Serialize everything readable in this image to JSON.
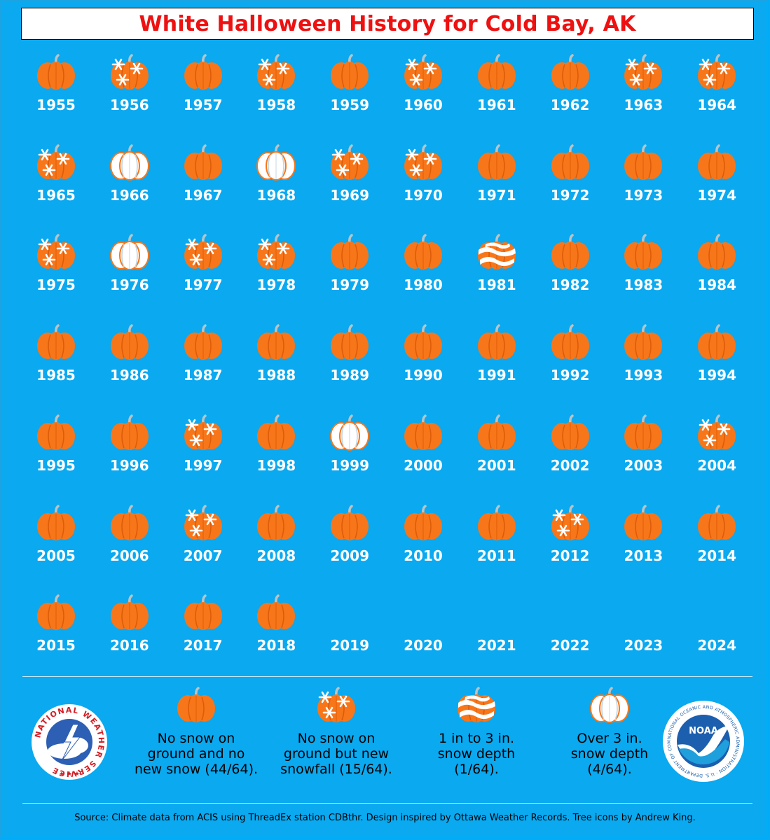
{
  "title": "White Halloween History for Cold Bay, AK",
  "colors": {
    "background": "#0aa9f0",
    "pumpkin": "#f8761a",
    "pumpkin_rib": "#dd5c08",
    "stem": "#b9c4c8",
    "snow": "#ffffff",
    "title_text": "#ee1111"
  },
  "chart_data": {
    "type": "table",
    "title": "White Halloween History for Cold Bay, AK",
    "categories_legend": {
      "none": "No snow on ground and no new snow (44/64).",
      "snowfall": "No snow on ground but new snowfall (15/64).",
      "depth_1_3": "1 in to 3 in. snow depth (1/64).",
      "depth_over_3": "Over 3 in. snow depth (4/64)."
    },
    "years": [
      {
        "year": "1955",
        "status": "none"
      },
      {
        "year": "1956",
        "status": "snowfall"
      },
      {
        "year": "1957",
        "status": "none"
      },
      {
        "year": "1958",
        "status": "snowfall"
      },
      {
        "year": "1959",
        "status": "none"
      },
      {
        "year": "1960",
        "status": "snowfall"
      },
      {
        "year": "1961",
        "status": "none"
      },
      {
        "year": "1962",
        "status": "none"
      },
      {
        "year": "1963",
        "status": "snowfall"
      },
      {
        "year": "1964",
        "status": "snowfall"
      },
      {
        "year": "1965",
        "status": "snowfall"
      },
      {
        "year": "1966",
        "status": "depth_over_3"
      },
      {
        "year": "1967",
        "status": "none"
      },
      {
        "year": "1968",
        "status": "depth_over_3"
      },
      {
        "year": "1969",
        "status": "snowfall"
      },
      {
        "year": "1970",
        "status": "snowfall"
      },
      {
        "year": "1971",
        "status": "none"
      },
      {
        "year": "1972",
        "status": "none"
      },
      {
        "year": "1973",
        "status": "none"
      },
      {
        "year": "1974",
        "status": "none"
      },
      {
        "year": "1975",
        "status": "snowfall"
      },
      {
        "year": "1976",
        "status": "depth_over_3"
      },
      {
        "year": "1977",
        "status": "snowfall"
      },
      {
        "year": "1978",
        "status": "snowfall"
      },
      {
        "year": "1979",
        "status": "none"
      },
      {
        "year": "1980",
        "status": "none"
      },
      {
        "year": "1981",
        "status": "depth_1_3"
      },
      {
        "year": "1982",
        "status": "none"
      },
      {
        "year": "1983",
        "status": "none"
      },
      {
        "year": "1984",
        "status": "none"
      },
      {
        "year": "1985",
        "status": "none"
      },
      {
        "year": "1986",
        "status": "none"
      },
      {
        "year": "1987",
        "status": "none"
      },
      {
        "year": "1988",
        "status": "none"
      },
      {
        "year": "1989",
        "status": "none"
      },
      {
        "year": "1990",
        "status": "none"
      },
      {
        "year": "1991",
        "status": "none"
      },
      {
        "year": "1992",
        "status": "none"
      },
      {
        "year": "1993",
        "status": "none"
      },
      {
        "year": "1994",
        "status": "none"
      },
      {
        "year": "1995",
        "status": "none"
      },
      {
        "year": "1996",
        "status": "none"
      },
      {
        "year": "1997",
        "status": "snowfall"
      },
      {
        "year": "1998",
        "status": "none"
      },
      {
        "year": "1999",
        "status": "depth_over_3"
      },
      {
        "year": "2000",
        "status": "none"
      },
      {
        "year": "2001",
        "status": "none"
      },
      {
        "year": "2002",
        "status": "none"
      },
      {
        "year": "2003",
        "status": "none"
      },
      {
        "year": "2004",
        "status": "snowfall"
      },
      {
        "year": "2005",
        "status": "none"
      },
      {
        "year": "2006",
        "status": "none"
      },
      {
        "year": "2007",
        "status": "snowfall"
      },
      {
        "year": "2008",
        "status": "none"
      },
      {
        "year": "2009",
        "status": "none"
      },
      {
        "year": "2010",
        "status": "none"
      },
      {
        "year": "2011",
        "status": "none"
      },
      {
        "year": "2012",
        "status": "snowfall"
      },
      {
        "year": "2013",
        "status": "none"
      },
      {
        "year": "2014",
        "status": "none"
      },
      {
        "year": "2015",
        "status": "none"
      },
      {
        "year": "2016",
        "status": "none"
      },
      {
        "year": "2017",
        "status": "none"
      },
      {
        "year": "2018",
        "status": "none"
      },
      {
        "year": "2019",
        "status": "missing"
      },
      {
        "year": "2020",
        "status": "missing"
      },
      {
        "year": "2021",
        "status": "missing"
      },
      {
        "year": "2022",
        "status": "missing"
      },
      {
        "year": "2023",
        "status": "missing"
      },
      {
        "year": "2024",
        "status": "missing"
      }
    ]
  },
  "legend": [
    {
      "key": "none",
      "label": "No snow on\nground and no\nnew snow (44/64)."
    },
    {
      "key": "snowfall",
      "label": "No snow on\nground but new\nsnowfall (15/64)."
    },
    {
      "key": "depth_1_3",
      "label": "1 in to 3 in.\nsnow depth\n(1/64)."
    },
    {
      "key": "depth_over_3",
      "label": "Over 3 in.\nsnow depth\n(4/64)."
    }
  ],
  "logos": {
    "nws": {
      "icon": "nws-logo-icon",
      "text": "NATIONAL WEATHER SERVICE"
    },
    "noaa": {
      "icon": "noaa-logo-icon",
      "text": "NOAA",
      "ring_text": "NATIONAL OCEANIC AND ATMOSPHERIC ADMINISTRATION · U.S. DEPARTMENT OF COMMERCE"
    }
  },
  "source": "Source: Climate data from ACIS using ThreadEx station CDBthr. Design inspired by Ottawa Weather Records. Tree icons by Andrew King."
}
